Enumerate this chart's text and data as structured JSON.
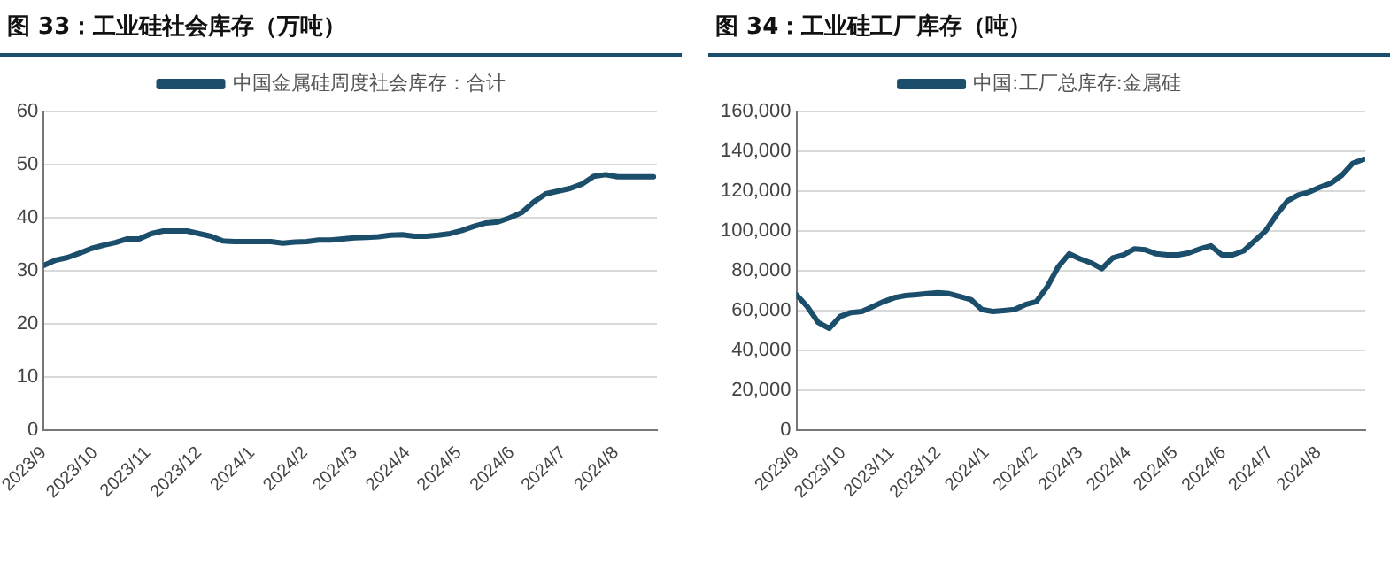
{
  "chart_data": [
    {
      "type": "line",
      "title": "图 33：工业硅社会库存（万吨）",
      "legend": "top",
      "grid": "y",
      "marker": "none",
      "line_style": "solid",
      "xlim": [
        "2023-09-01",
        "2024-08-25"
      ],
      "xticks": [
        {
          "value": "2023-09-01",
          "label": "2023/9"
        },
        {
          "value": "2023-10-01",
          "label": "2023/10"
        },
        {
          "value": "2023-11-01",
          "label": "2023/11"
        },
        {
          "value": "2023-12-01",
          "label": "2023/12"
        },
        {
          "value": "2024-01-01",
          "label": "2024/1"
        },
        {
          "value": "2024-02-01",
          "label": "2024/2"
        },
        {
          "value": "2024-03-01",
          "label": "2024/3"
        },
        {
          "value": "2024-04-01",
          "label": "2024/4"
        },
        {
          "value": "2024-05-01",
          "label": "2024/5"
        },
        {
          "value": "2024-06-01",
          "label": "2024/6"
        },
        {
          "value": "2024-07-01",
          "label": "2024/7"
        },
        {
          "value": "2024-08-01",
          "label": "2024/8"
        }
      ],
      "ylim": [
        0,
        60
      ],
      "yticks": [
        0,
        10,
        20,
        30,
        40,
        50,
        60
      ],
      "x": [
        "2023-09-01",
        "2023-09-08",
        "2023-09-15",
        "2023-09-22",
        "2023-09-29",
        "2023-10-06",
        "2023-10-13",
        "2023-10-20",
        "2023-10-27",
        "2023-11-03",
        "2023-11-10",
        "2023-11-17",
        "2023-11-24",
        "2023-12-01",
        "2023-12-08",
        "2023-12-15",
        "2023-12-22",
        "2023-12-29",
        "2024-01-05",
        "2024-01-12",
        "2024-01-19",
        "2024-01-26",
        "2024-02-02",
        "2024-02-09",
        "2024-02-16",
        "2024-02-23",
        "2024-03-01",
        "2024-03-08",
        "2024-03-15",
        "2024-03-22",
        "2024-03-29",
        "2024-04-05",
        "2024-04-12",
        "2024-04-19",
        "2024-04-26",
        "2024-05-03",
        "2024-05-10",
        "2024-05-17",
        "2024-05-24",
        "2024-05-31",
        "2024-06-07",
        "2024-06-14",
        "2024-06-21",
        "2024-06-28",
        "2024-07-05",
        "2024-07-12",
        "2024-07-19",
        "2024-07-26",
        "2024-08-02",
        "2024-08-09",
        "2024-08-16",
        "2024-08-23"
      ],
      "series": [
        {
          "name": "中国金属硅周度社会库存：合计",
          "color": "#1b4e6b",
          "values": [
            31,
            32,
            32.5,
            33.3,
            34.2,
            34.8,
            35.3,
            36,
            36,
            37,
            37.5,
            37.5,
            37.5,
            37,
            36.5,
            35.6,
            35.5,
            35.5,
            35.5,
            35.5,
            35.2,
            35.4,
            35.5,
            35.8,
            35.8,
            36,
            36.2,
            36.3,
            36.4,
            36.7,
            36.8,
            36.5,
            36.5,
            36.7,
            37,
            37.6,
            38.4,
            39,
            39.2,
            40,
            41,
            43,
            44.5,
            45,
            45.5,
            46.3,
            47.8,
            48.1,
            47.7,
            47.7,
            47.7,
            47.7
          ]
        }
      ]
    },
    {
      "type": "line",
      "title": "图 34：工业硅工厂库存（吨）",
      "legend": "top",
      "grid": "y",
      "marker": "none",
      "line_style": "solid",
      "xlim": [
        "2023-09-01",
        "2024-08-31"
      ],
      "xticks": [
        {
          "value": "2023-09-01",
          "label": "2023/9"
        },
        {
          "value": "2023-10-01",
          "label": "2023/10"
        },
        {
          "value": "2023-11-01",
          "label": "2023/11"
        },
        {
          "value": "2023-12-01",
          "label": "2023/12"
        },
        {
          "value": "2024-01-01",
          "label": "2024/1"
        },
        {
          "value": "2024-02-01",
          "label": "2024/2"
        },
        {
          "value": "2024-03-01",
          "label": "2024/3"
        },
        {
          "value": "2024-04-01",
          "label": "2024/4"
        },
        {
          "value": "2024-05-01",
          "label": "2024/5"
        },
        {
          "value": "2024-06-01",
          "label": "2024/6"
        },
        {
          "value": "2024-07-01",
          "label": "2024/7"
        },
        {
          "value": "2024-08-01",
          "label": "2024/8"
        }
      ],
      "ylim": [
        0,
        160000
      ],
      "yticks": [
        {
          "value": 0,
          "label": "0"
        },
        {
          "value": 20000,
          "label": "20,000"
        },
        {
          "value": 40000,
          "label": "40,000"
        },
        {
          "value": 60000,
          "label": "60,000"
        },
        {
          "value": 80000,
          "label": "80,000"
        },
        {
          "value": 100000,
          "label": "100,000"
        },
        {
          "value": 120000,
          "label": "120,000"
        },
        {
          "value": 140000,
          "label": "140,000"
        },
        {
          "value": 160000,
          "label": "160,000"
        }
      ],
      "x": [
        "2023-09-01",
        "2023-09-08",
        "2023-09-15",
        "2023-09-22",
        "2023-09-29",
        "2023-10-06",
        "2023-10-13",
        "2023-10-20",
        "2023-10-27",
        "2023-11-03",
        "2023-11-10",
        "2023-11-17",
        "2023-11-24",
        "2023-12-01",
        "2023-12-08",
        "2023-12-15",
        "2023-12-22",
        "2023-12-29",
        "2024-01-05",
        "2024-01-12",
        "2024-01-19",
        "2024-01-26",
        "2024-02-02",
        "2024-02-09",
        "2024-02-16",
        "2024-02-23",
        "2024-03-01",
        "2024-03-08",
        "2024-03-15",
        "2024-03-22",
        "2024-03-29",
        "2024-04-05",
        "2024-04-12",
        "2024-04-19",
        "2024-04-26",
        "2024-05-03",
        "2024-05-10",
        "2024-05-17",
        "2024-05-24",
        "2024-05-31",
        "2024-06-07",
        "2024-06-14",
        "2024-06-21",
        "2024-06-28",
        "2024-07-05",
        "2024-07-12",
        "2024-07-19",
        "2024-07-26",
        "2024-08-02",
        "2024-08-09",
        "2024-08-16",
        "2024-08-23",
        "2024-08-30"
      ],
      "series": [
        {
          "name": "中国:工厂总库存:金属硅",
          "color": "#1b4e6b",
          "values": [
            68000,
            62000,
            54000,
            51000,
            57000,
            59000,
            59500,
            62000,
            64500,
            66500,
            67500,
            68000,
            68500,
            69000,
            68500,
            67000,
            65500,
            60500,
            59500,
            60000,
            60500,
            63000,
            64500,
            72000,
            82000,
            88500,
            86000,
            84000,
            81000,
            86500,
            88000,
            91000,
            90500,
            88500,
            88000,
            88000,
            89000,
            91000,
            92500,
            88000,
            88000,
            90000,
            95000,
            100000,
            108000,
            115000,
            118000,
            119500,
            122000,
            124000,
            128000,
            134000,
            136000
          ]
        }
      ]
    }
  ]
}
